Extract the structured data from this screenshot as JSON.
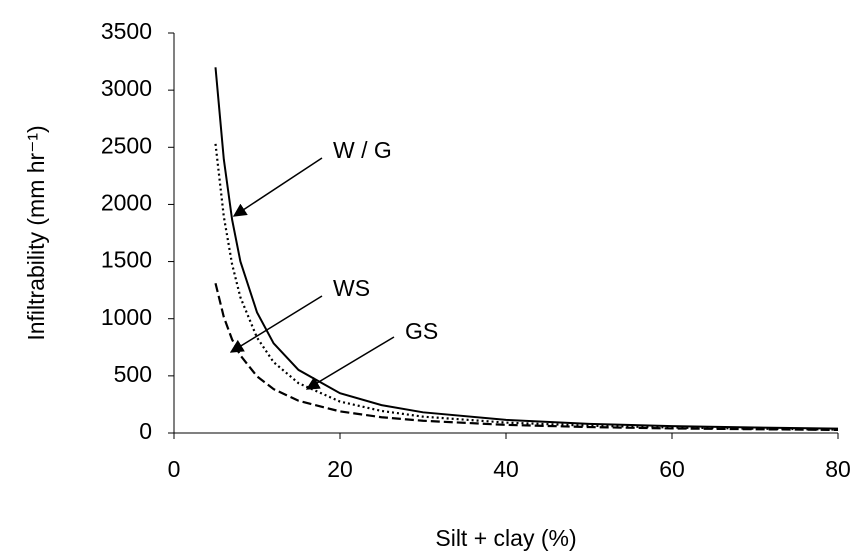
{
  "chart_data": {
    "type": "line",
    "x_label": "Silt + clay (%)",
    "y_label": "Infiltrability (mm hr⁻¹)",
    "x": [
      5,
      6,
      7,
      8,
      10,
      12,
      15,
      20,
      25,
      30,
      40,
      50,
      60,
      70,
      80
    ],
    "series": [
      {
        "name": "W / G",
        "color": "#000000",
        "dash": "solid",
        "values": [
          3200,
          2396,
          1867,
          1501,
          1056,
          785,
          552,
          348,
          244,
          181,
          115,
          80,
          60,
          48,
          38
        ]
      },
      {
        "name": "WS",
        "color": "#000000",
        "dash": "dotted",
        "values": [
          2530,
          1894,
          1476,
          1187,
          835,
          620,
          436,
          275,
          193,
          143,
          91,
          64,
          48,
          38,
          30
        ]
      },
      {
        "name": "GS",
        "color": "#000000",
        "dash": "dashed",
        "values": [
          1310,
          1015,
          818,
          679,
          496,
          384,
          282,
          189,
          138,
          107,
          71,
          52,
          40,
          33,
          27
        ]
      }
    ],
    "xlim": [
      0,
      80
    ],
    "xticks": [
      0,
      20,
      40,
      60,
      80
    ],
    "ylim": [
      0,
      3500
    ],
    "yticks": [
      0,
      500,
      1000,
      1500,
      2000,
      2500,
      3000,
      3500
    ]
  }
}
